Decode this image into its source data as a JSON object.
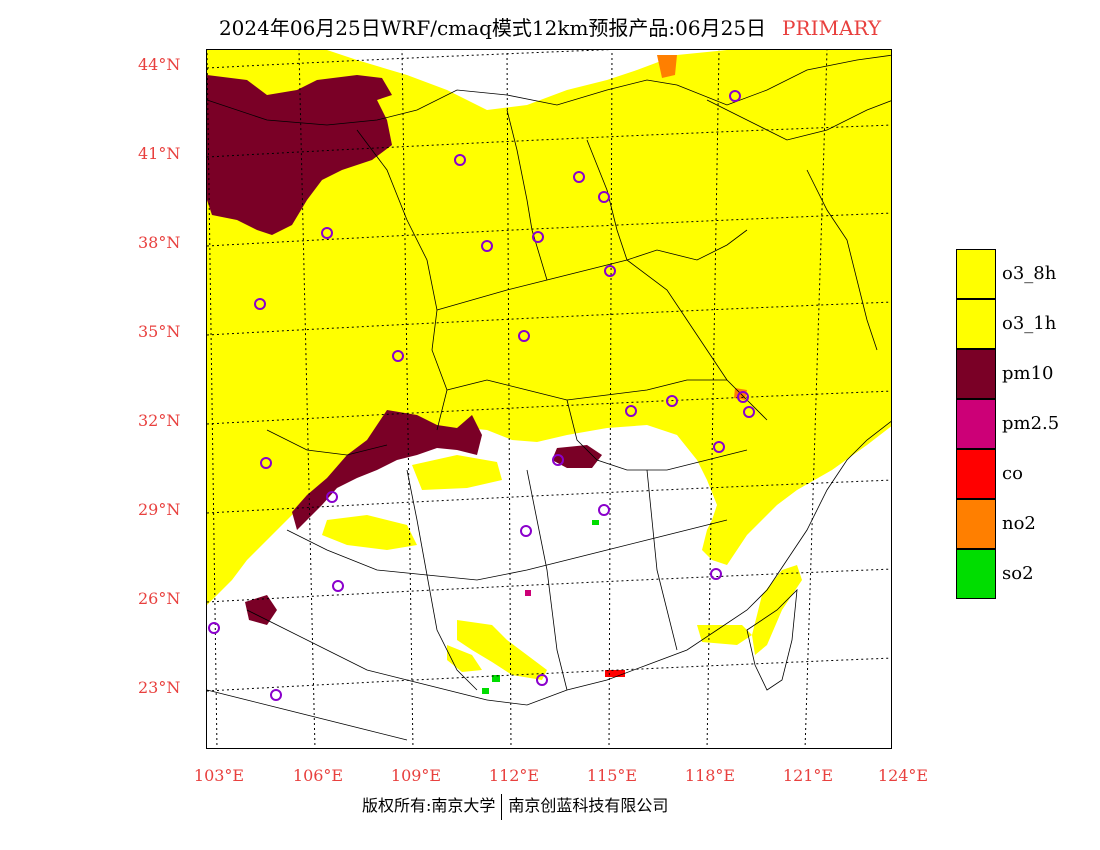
{
  "header": {
    "title": "2024年06月25日WRF/cmaq模式12km预报产品:06月25日",
    "tag": "PRIMARY"
  },
  "axes": {
    "lat_labels": [
      "44°N",
      "41°N",
      "38°N",
      "35°N",
      "32°N",
      "29°N",
      "26°N",
      "23°N"
    ],
    "lon_labels": [
      "103°E",
      "106°E",
      "109°E",
      "112°E",
      "115°E",
      "118°E",
      "121°E",
      "124°E"
    ]
  },
  "legend": {
    "items": [
      {
        "label": "o3_8h",
        "color": "#ffff00"
      },
      {
        "label": "o3_1h",
        "color": "#ffff00"
      },
      {
        "label": "pm10",
        "color": "#7a0026"
      },
      {
        "label": "pm2.5",
        "color": "#cc0077"
      },
      {
        "label": "co",
        "color": "#ff0000"
      },
      {
        "label": "no2",
        "color": "#ff7f00"
      },
      {
        "label": "so2",
        "color": "#00dd00"
      }
    ]
  },
  "colors": {
    "accent": "#e8403e",
    "station_ring": "#8a00cc"
  },
  "footer": {
    "left": "版权所有:南京大学",
    "right": "南京创蓝科技有限公司"
  }
}
